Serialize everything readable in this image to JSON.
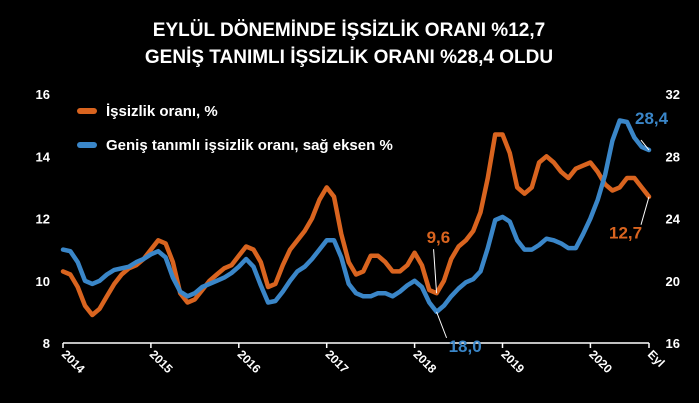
{
  "title": {
    "line1": "EYLÜL DÖNEMİNDE İŞSİZLİK ORANI %12,7",
    "line2": "GENİŞ TANIMLI İŞSİZLİK ORANI %28,4 OLDU"
  },
  "colors": {
    "background": "#000000",
    "unemployment": "#d9641f",
    "broad_unemployment": "#3a86c8",
    "text": "#ffffff",
    "axis": "#ffffff"
  },
  "chart_data": {
    "type": "line",
    "x_tick_labels": [
      "2014",
      "2015",
      "2016",
      "2017",
      "2018",
      "2019",
      "2020",
      "Eyl"
    ],
    "x_tick_positions": [
      0,
      12,
      24,
      36,
      48,
      60,
      72,
      80
    ],
    "y_left": {
      "range": [
        8,
        16
      ],
      "ticks": [
        "8",
        "10",
        "12",
        "14",
        "16"
      ]
    },
    "y_right": {
      "range": [
        16,
        32
      ],
      "ticks": [
        "16",
        "20",
        "24",
        "28",
        "32"
      ]
    },
    "legend_position": "top-left",
    "grid": false,
    "series": [
      {
        "name": "İşsizlik oranı, %",
        "axis": "left",
        "values": [
          10.3,
          10.2,
          9.8,
          9.2,
          8.9,
          9.1,
          9.5,
          9.9,
          10.2,
          10.4,
          10.5,
          10.7,
          11.0,
          11.3,
          11.2,
          10.6,
          9.6,
          9.3,
          9.4,
          9.7,
          10.0,
          10.2,
          10.4,
          10.5,
          10.8,
          11.1,
          11.0,
          10.6,
          9.8,
          9.9,
          10.5,
          11.0,
          11.3,
          11.6,
          12.0,
          12.6,
          13.0,
          12.7,
          11.5,
          10.6,
          10.2,
          10.3,
          10.8,
          10.8,
          10.6,
          10.3,
          10.3,
          10.5,
          10.9,
          10.5,
          9.7,
          9.6,
          10.0,
          10.7,
          11.1,
          11.3,
          11.6,
          12.2,
          13.3,
          14.7,
          14.7,
          14.1,
          13.0,
          12.8,
          13.0,
          13.8,
          14.0,
          13.8,
          13.5,
          13.3,
          13.6,
          13.7,
          13.8,
          13.5,
          13.1,
          12.9,
          13.0,
          13.3,
          13.3,
          13.0,
          12.7
        ]
      },
      {
        "name": "Geniş tanımlı işsizlik oranı, sağ eksen %",
        "axis": "right",
        "values": [
          22.0,
          21.9,
          21.2,
          20.0,
          19.8,
          20.0,
          20.4,
          20.7,
          20.8,
          20.9,
          21.2,
          21.4,
          21.7,
          21.9,
          21.5,
          20.2,
          19.3,
          19.0,
          19.2,
          19.6,
          19.8,
          20.0,
          20.2,
          20.5,
          20.9,
          21.4,
          20.9,
          19.7,
          18.6,
          18.7,
          19.3,
          20.0,
          20.6,
          20.9,
          21.4,
          22.0,
          22.6,
          22.6,
          21.5,
          19.8,
          19.2,
          19.0,
          19.0,
          19.2,
          19.2,
          19.0,
          19.3,
          19.7,
          20.0,
          19.6,
          18.6,
          18.0,
          18.4,
          19.0,
          19.5,
          19.9,
          20.1,
          20.6,
          22.1,
          23.9,
          24.1,
          23.8,
          22.6,
          22.0,
          22.0,
          22.3,
          22.7,
          22.6,
          22.4,
          22.1,
          22.1,
          23.0,
          24.0,
          25.2,
          26.8,
          29.0,
          30.3,
          30.2,
          29.2,
          28.6,
          28.4
        ]
      }
    ],
    "annotations": [
      {
        "text": "9,6",
        "series": 0,
        "index": 51,
        "color": "#d9641f"
      },
      {
        "text": "18,0",
        "series": 1,
        "index": 51,
        "color": "#3a86c8"
      },
      {
        "text": "12,7",
        "series": 0,
        "index": 80,
        "color": "#d9641f"
      },
      {
        "text": "28,4",
        "series": 1,
        "index": 80,
        "color": "#3a86c8"
      }
    ]
  }
}
